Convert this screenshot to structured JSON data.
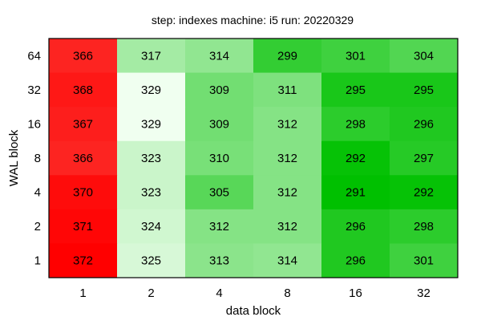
{
  "chart_data": {
    "type": "heatmap",
    "title": "step: indexes  machine: i5  run: 20220329",
    "xlabel": "data block",
    "ylabel": "WAL block",
    "x_categories": [
      "1",
      "2",
      "4",
      "8",
      "16",
      "32"
    ],
    "y_categories": [
      "64",
      "32",
      "16",
      "8",
      "4",
      "2",
      "1"
    ],
    "values": [
      [
        366,
        317,
        314,
        299,
        301,
        304
      ],
      [
        368,
        329,
        309,
        311,
        295,
        295
      ],
      [
        367,
        329,
        309,
        312,
        298,
        296
      ],
      [
        366,
        323,
        310,
        312,
        292,
        297
      ],
      [
        370,
        323,
        305,
        312,
        291,
        292
      ],
      [
        371,
        324,
        312,
        312,
        296,
        298
      ],
      [
        372,
        325,
        313,
        314,
        296,
        301
      ]
    ],
    "color_scale": {
      "low_color": "#00c000",
      "mid_color": "#f0fff0",
      "high_color": "#ff0000",
      "low_value": 291,
      "mid_value": 329,
      "high_value": 372
    },
    "grid": false,
    "legend": "none"
  }
}
